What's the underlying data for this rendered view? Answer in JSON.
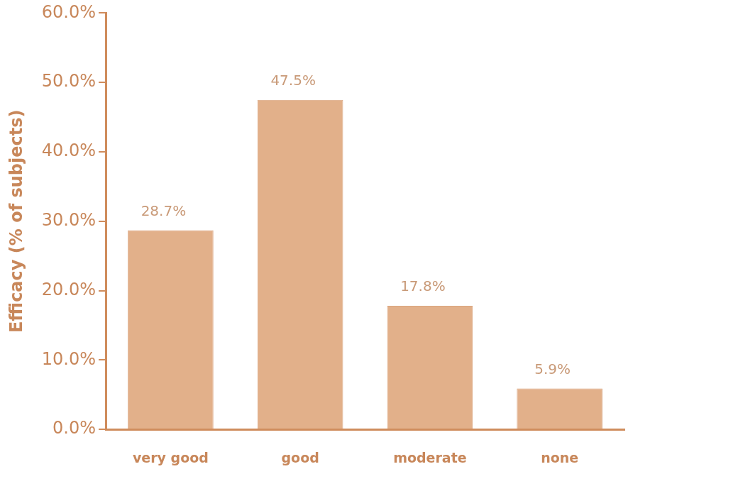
{
  "chart_data": {
    "type": "bar",
    "ylabel": "Efficacy (% of subjects)",
    "categories": [
      "very good",
      "good",
      "moderate",
      "none"
    ],
    "values": [
      28.7,
      47.5,
      17.8,
      5.9
    ],
    "value_labels": [
      "28.7%",
      "47.5%",
      "17.8%",
      "5.9%"
    ],
    "color": "#e2b08a",
    "ylim": [
      0,
      60
    ],
    "yticks": [
      {
        "value": 0,
        "label": "0.0%"
      },
      {
        "value": 10,
        "label": "10.0%"
      },
      {
        "value": 20,
        "label": "20.0%"
      },
      {
        "value": 30,
        "label": "30.0%"
      },
      {
        "value": 40,
        "label": "40.0%"
      },
      {
        "value": 50,
        "label": "50.0%"
      },
      {
        "value": 60,
        "label": "60.0%"
      }
    ],
    "grid": false,
    "legend": false
  }
}
